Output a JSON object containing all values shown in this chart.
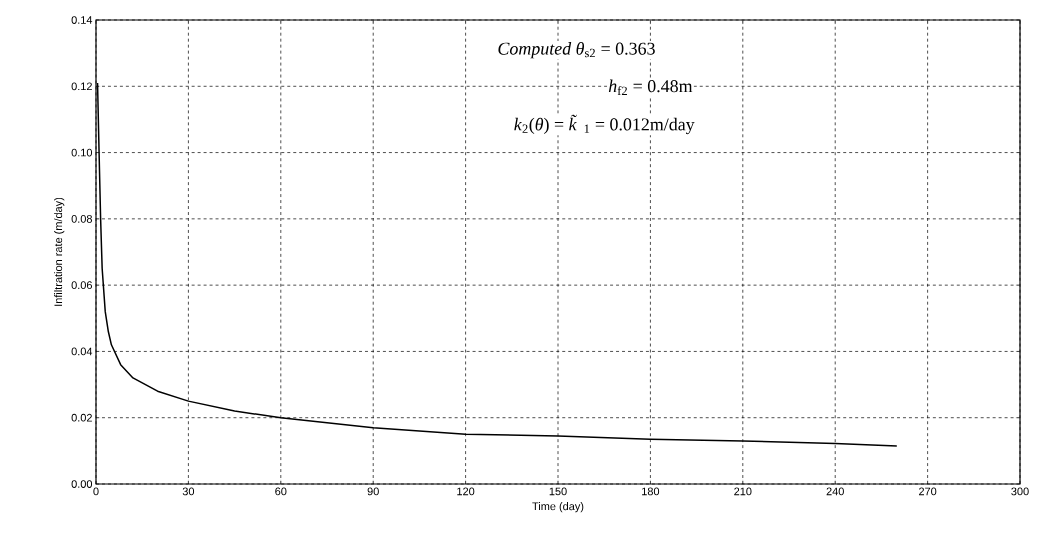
{
  "chart_data": {
    "type": "line",
    "xlabel": "Time (day)",
    "ylabel": "Infiltration rate (m/day)",
    "xlim": [
      0,
      300
    ],
    "xticks": [
      0,
      30,
      60,
      90,
      120,
      150,
      180,
      210,
      240,
      270,
      300
    ],
    "ylim": [
      0,
      0.14
    ],
    "yticks": [
      {
        "value": 0,
        "label": "0.00"
      },
      {
        "value": 0.02,
        "label": "0.02"
      },
      {
        "value": 0.04,
        "label": "0.04"
      },
      {
        "value": 0.06,
        "label": "0.06"
      },
      {
        "value": 0.08,
        "label": "0.08"
      },
      {
        "value": 0.1,
        "label": "0.10"
      },
      {
        "value": 0.12,
        "label": "0.12"
      },
      {
        "value": 0.14,
        "label": "0.14"
      }
    ],
    "grid": true,
    "marker": "none",
    "line_style": "solid",
    "series": [
      {
        "color": "#000000",
        "x": [
          0.5,
          1,
          1.5,
          2,
          3,
          4,
          5,
          8,
          12,
          20,
          30,
          45,
          60,
          90,
          120,
          150,
          180,
          210,
          240,
          260
        ],
        "values": [
          0.121,
          0.1,
          0.08,
          0.065,
          0.052,
          0.046,
          0.042,
          0.036,
          0.032,
          0.028,
          0.025,
          0.022,
          0.02,
          0.017,
          0.015,
          0.0145,
          0.0135,
          0.013,
          0.0122,
          0.0115
        ]
      }
    ],
    "annotations": [
      "*Computed θ*$_{s2}$ = 0.363",
      "*h*$_{f2}$ = 0.48m",
      "*k*$_{2}$(*θ*) = *k̃*$_{1}$ = 0.012m/day"
    ]
  }
}
